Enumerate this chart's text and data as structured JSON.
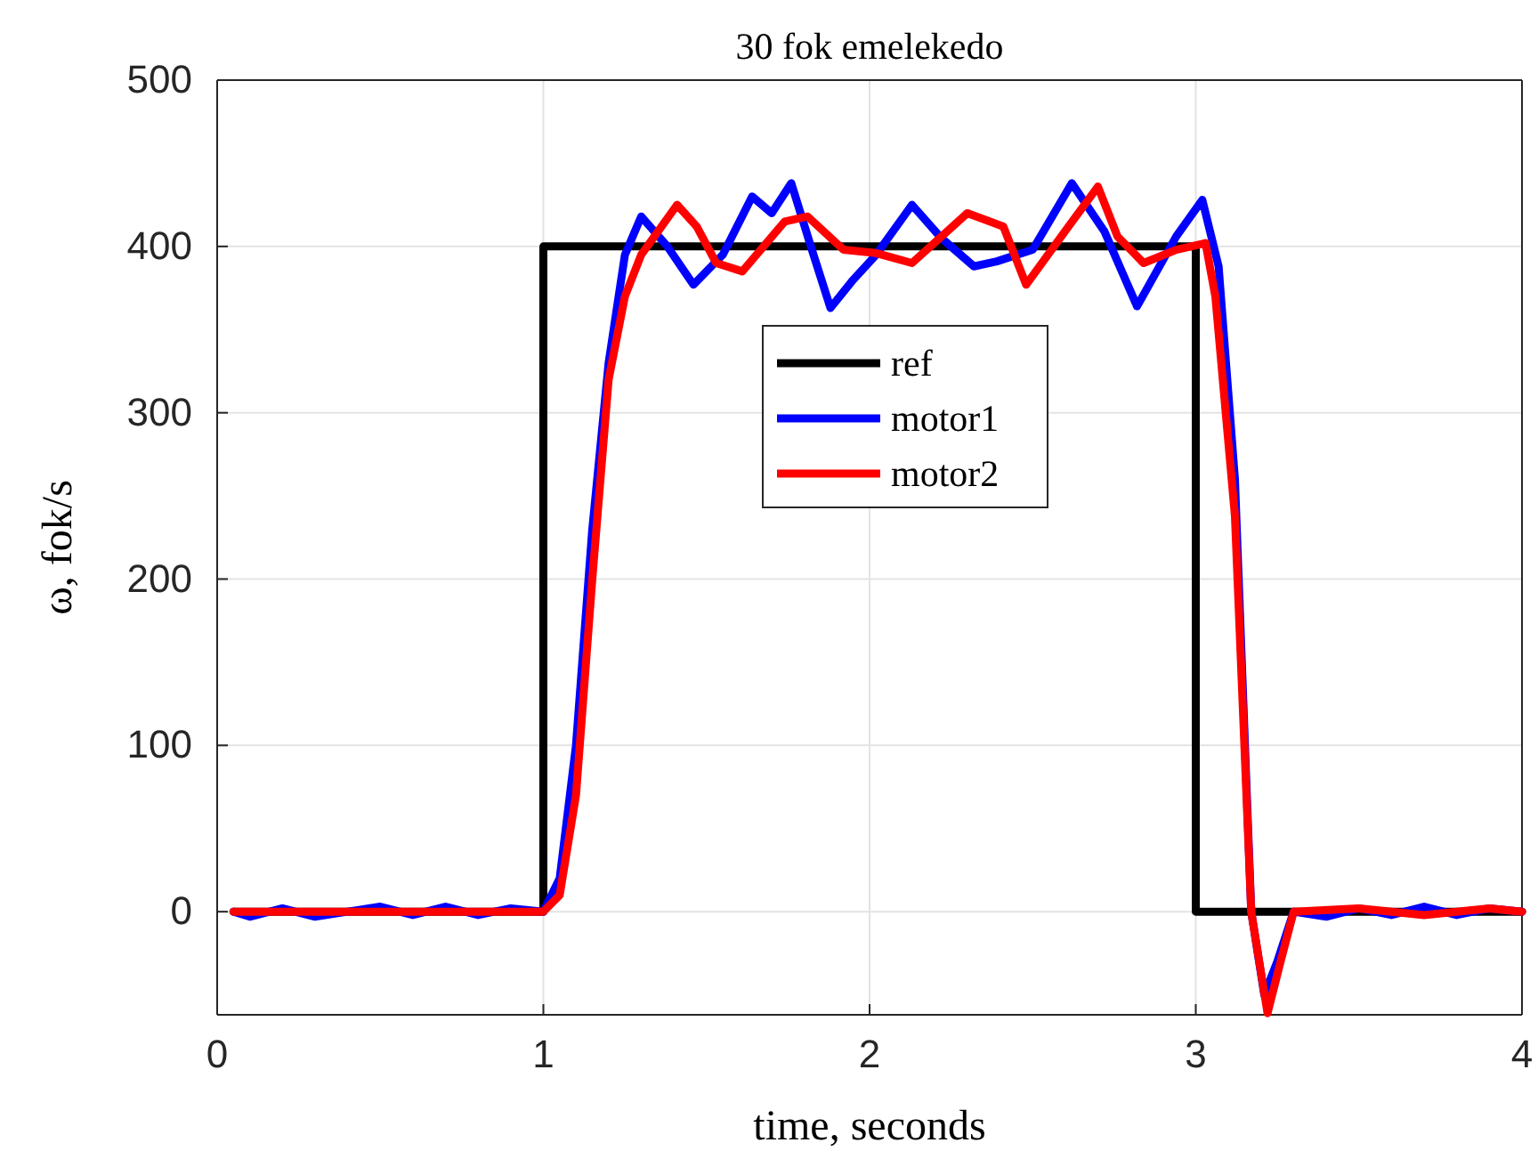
{
  "chart_data": {
    "type": "line",
    "title": "30 fok emelekedo",
    "xlabel": "time, seconds",
    "ylabel": "ω, fok/s",
    "xlim": [
      0,
      4
    ],
    "xticks": [
      0,
      1,
      2,
      3,
      4
    ],
    "ylim": [
      -62,
      500
    ],
    "yticks": [
      0,
      100,
      200,
      300,
      400,
      500
    ],
    "grid": true,
    "legend": "top",
    "line_style": "solid",
    "marker": "none",
    "series": [
      {
        "name": "ref",
        "color": "#000000",
        "x": [
          0.05,
          1.0,
          1.0,
          3.0,
          3.0,
          4.0
        ],
        "values": [
          0,
          0,
          400,
          400,
          0,
          0
        ]
      },
      {
        "name": "motor1",
        "color": "#0000ff",
        "x": [
          0.05,
          0.1,
          0.2,
          0.3,
          0.4,
          0.5,
          0.6,
          0.7,
          0.8,
          0.9,
          1.0,
          1.05,
          1.1,
          1.15,
          1.2,
          1.25,
          1.3,
          1.38,
          1.46,
          1.55,
          1.64,
          1.7,
          1.76,
          1.82,
          1.88,
          1.95,
          2.02,
          2.13,
          2.22,
          2.32,
          2.39,
          2.5,
          2.62,
          2.72,
          2.82,
          2.94,
          3.02,
          3.07,
          3.12,
          3.17,
          3.21,
          3.25,
          3.3,
          3.4,
          3.5,
          3.6,
          3.7,
          3.8,
          3.9,
          4.0
        ],
        "values": [
          0,
          -3,
          2,
          -3,
          0,
          3,
          -2,
          3,
          -2,
          2,
          0,
          20,
          100,
          230,
          330,
          395,
          418,
          400,
          377,
          395,
          430,
          420,
          438,
          400,
          363,
          380,
          395,
          425,
          405,
          388,
          391,
          398,
          438,
          409,
          364,
          406,
          428,
          388,
          260,
          0,
          -50,
          -30,
          0,
          -3,
          2,
          -2,
          3,
          -2,
          2,
          0
        ]
      },
      {
        "name": "motor2",
        "color": "#ff0000",
        "x": [
          0.05,
          0.5,
          1.0,
          1.05,
          1.1,
          1.15,
          1.2,
          1.25,
          1.3,
          1.41,
          1.47,
          1.53,
          1.61,
          1.74,
          1.81,
          1.92,
          2.02,
          2.13,
          2.3,
          2.41,
          2.48,
          2.61,
          2.7,
          2.76,
          2.84,
          2.94,
          3.03,
          3.06,
          3.12,
          3.17,
          3.22,
          3.26,
          3.3,
          3.5,
          3.7,
          3.9,
          4.0
        ],
        "values": [
          0,
          0,
          0,
          10,
          70,
          200,
          320,
          370,
          395,
          425,
          412,
          390,
          385,
          415,
          418,
          398,
          396,
          390,
          420,
          412,
          377,
          412,
          436,
          406,
          390,
          398,
          402,
          370,
          238,
          0,
          -61,
          -30,
          0,
          2,
          -2,
          2,
          0
        ]
      }
    ]
  }
}
